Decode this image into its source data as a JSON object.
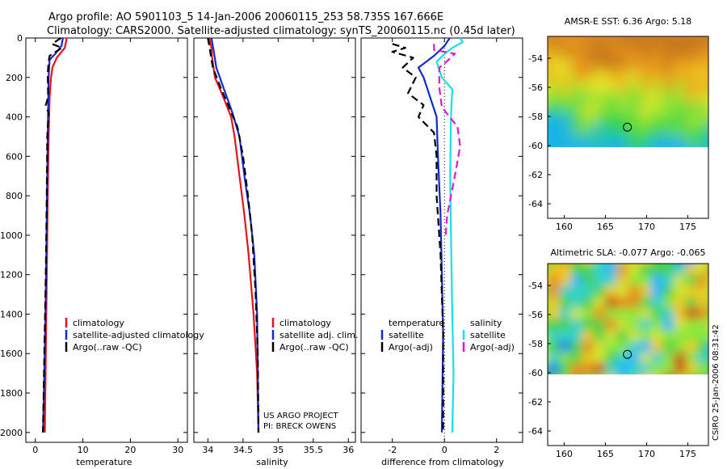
{
  "title": {
    "line1": "Argo profile: AO 5901103_5 14-Jan-2006 20060115_253 58.735S 167.666E",
    "line2": "Climatology: CARS2000. Satellite-adjusted climatology: synTS_20060115.nc (0.45d later)"
  },
  "side_note": "CSIRO 25-Jan-2006 08:31:42",
  "credit": {
    "line1": "US ARGO PROJECT",
    "line2": "PI: BRECK OWENS"
  },
  "colors": {
    "climatology": "#e8121a",
    "satellite": "#1428d2",
    "argo": "#000000",
    "sal_satellite": "#14e0e8",
    "sal_argo": "#e614d2"
  },
  "chart_data": [
    {
      "type": "line",
      "xlabel": "temperature",
      "ylabel": "",
      "xlim": [
        -2,
        32
      ],
      "ylim": [
        2050,
        0
      ],
      "xticks": [
        "0",
        "10",
        "20",
        "30"
      ],
      "yticks": [
        "0",
        "200",
        "400",
        "600",
        "800",
        "1000",
        "1200",
        "1400",
        "1600",
        "1800",
        "2000"
      ],
      "legend_labels": [
        "climatology",
        "satellite-adjusted climatology",
        "Argo(..raw -QC)"
      ],
      "series": [
        {
          "style": "climatology",
          "values": [
            [
              6.6,
              0
            ],
            [
              6.2,
              50
            ],
            [
              4.5,
              100
            ],
            [
              3.6,
              150
            ],
            [
              3.3,
              200
            ],
            [
              3.0,
              300
            ],
            [
              2.8,
              500
            ],
            [
              2.6,
              800
            ],
            [
              2.4,
              1200
            ],
            [
              2.2,
              1600
            ],
            [
              2.0,
              2000
            ]
          ]
        },
        {
          "style": "satellite",
          "values": [
            [
              5.8,
              0
            ],
            [
              5.5,
              40
            ],
            [
              4.2,
              80
            ],
            [
              3.0,
              110
            ],
            [
              2.8,
              200
            ],
            [
              2.6,
              500
            ],
            [
              2.4,
              900
            ],
            [
              2.2,
              1300
            ],
            [
              1.9,
              1700
            ],
            [
              1.6,
              2000
            ]
          ]
        },
        {
          "style": "argo",
          "values": [
            [
              5.4,
              0
            ],
            [
              3.5,
              30
            ],
            [
              5.6,
              50
            ],
            [
              3.0,
              90
            ],
            [
              2.8,
              120
            ],
            [
              2.6,
              180
            ],
            [
              2.7,
              300
            ],
            [
              2.2,
              340
            ],
            [
              2.8,
              380
            ],
            [
              2.5,
              500
            ],
            [
              2.4,
              800
            ],
            [
              2.2,
              1200
            ],
            [
              1.9,
              1600
            ],
            [
              1.6,
              2000
            ]
          ]
        }
      ]
    },
    {
      "type": "line",
      "xlabel": "salinity",
      "ylabel": "",
      "xlim": [
        33.8,
        36.1
      ],
      "ylim": [
        2050,
        0
      ],
      "xticks": [
        "34",
        "34.5",
        "35",
        "35.5",
        "36"
      ],
      "yticks": [],
      "legend_labels": [
        "climatology",
        "satellite adj. clim.",
        "Argo(..raw -QC)"
      ],
      "series": [
        {
          "style": "climatology",
          "values": [
            [
              34.02,
              0
            ],
            [
              34.05,
              50
            ],
            [
              34.06,
              100
            ],
            [
              34.1,
              200
            ],
            [
              34.22,
              300
            ],
            [
              34.33,
              400
            ],
            [
              34.38,
              500
            ],
            [
              34.45,
              700
            ],
            [
              34.52,
              900
            ],
            [
              34.58,
              1100
            ],
            [
              34.65,
              1400
            ],
            [
              34.7,
              1700
            ],
            [
              34.72,
              2000
            ]
          ]
        },
        {
          "style": "satellite",
          "values": [
            [
              34.05,
              0
            ],
            [
              34.08,
              60
            ],
            [
              34.12,
              150
            ],
            [
              34.22,
              250
            ],
            [
              34.35,
              380
            ],
            [
              34.45,
              500
            ],
            [
              34.52,
              700
            ],
            [
              34.6,
              900
            ],
            [
              34.66,
              1100
            ],
            [
              34.7,
              1400
            ],
            [
              34.72,
              2000
            ]
          ]
        },
        {
          "style": "argo",
          "values": [
            [
              34.0,
              0
            ],
            [
              34.02,
              40
            ],
            [
              34.07,
              150
            ],
            [
              34.18,
              250
            ],
            [
              34.3,
              350
            ],
            [
              34.42,
              450
            ],
            [
              34.5,
              600
            ],
            [
              34.57,
              800
            ],
            [
              34.63,
              1000
            ],
            [
              34.68,
              1300
            ],
            [
              34.71,
              1600
            ],
            [
              34.72,
              2000
            ]
          ]
        }
      ]
    },
    {
      "type": "line",
      "xlabel": "difference from climatology",
      "ylabel": "",
      "xlim": [
        -3.2,
        3.0
      ],
      "ylim": [
        2050,
        0
      ],
      "xticks": [
        "-2",
        "0",
        "2"
      ],
      "yticks": [],
      "legend_labels": [
        "temperature",
        "satellite",
        "Argo(-adj)",
        "salinity",
        "satellite",
        "Argo(-adj)"
      ],
      "series": [
        {
          "style": "satellite",
          "values": [
            [
              0.2,
              0
            ],
            [
              0.0,
              40
            ],
            [
              -0.4,
              90
            ],
            [
              -1.0,
              150
            ],
            [
              -0.8,
              200
            ],
            [
              -0.6,
              280
            ],
            [
              -0.3,
              400
            ],
            [
              -0.25,
              600
            ],
            [
              -0.15,
              900
            ],
            [
              -0.1,
              1200
            ],
            [
              -0.05,
              1500
            ],
            [
              -0.1,
              2000
            ]
          ]
        },
        {
          "style": "argo",
          "values": [
            [
              -2.0,
              30
            ],
            [
              -1.5,
              50
            ],
            [
              -2.0,
              70
            ],
            [
              -1.2,
              100
            ],
            [
              -1.6,
              150
            ],
            [
              -1.1,
              200
            ],
            [
              -1.4,
              280
            ],
            [
              -0.8,
              340
            ],
            [
              -1.0,
              400
            ],
            [
              -0.4,
              480
            ],
            [
              -0.3,
              600
            ],
            [
              -0.3,
              800
            ],
            [
              -0.15,
              1100
            ],
            [
              -0.05,
              1500
            ],
            [
              -0.05,
              2000
            ]
          ]
        },
        {
          "style": "sal_satellite",
          "values": [
            [
              0.6,
              0
            ],
            [
              0.7,
              20
            ],
            [
              0.3,
              50
            ],
            [
              0.0,
              80
            ],
            [
              -0.3,
              120
            ],
            [
              -0.1,
              200
            ],
            [
              0.3,
              260
            ],
            [
              0.25,
              400
            ],
            [
              0.22,
              700
            ],
            [
              0.25,
              1000
            ],
            [
              0.3,
              1400
            ],
            [
              0.35,
              1700
            ],
            [
              0.3,
              2000
            ]
          ]
        },
        {
          "style": "sal_argo",
          "values": [
            [
              -0.4,
              30
            ],
            [
              -0.4,
              60
            ],
            [
              0.4,
              80
            ],
            [
              0.0,
              130
            ],
            [
              -0.2,
              150
            ],
            [
              -0.2,
              250
            ],
            [
              -0.1,
              350
            ],
            [
              0.5,
              450
            ],
            [
              0.6,
              550
            ],
            [
              0.4,
              700
            ],
            [
              0.25,
              800
            ],
            [
              0.1,
              900
            ],
            [
              0.05,
              1000
            ]
          ]
        }
      ]
    },
    {
      "type": "heatmap",
      "title": "AMSR-E SST: 6.36 Argo: 5.18",
      "xlim": [
        158,
        177.5
      ],
      "ylim": [
        -65,
        -52.5
      ],
      "xticks": [
        "160",
        "165",
        "170",
        "175"
      ],
      "yticks": [
        "-54",
        "-56",
        "-58",
        "-60",
        "-62",
        "-64"
      ],
      "data_extent_lat": [
        -60,
        -52.5
      ],
      "argo_position": [
        167.666,
        -58.735
      ]
    },
    {
      "type": "heatmap",
      "title": "Altimetric SLA: -0.077 Argo: -0.065",
      "xlim": [
        158,
        177.5
      ],
      "ylim": [
        -65,
        -52.5
      ],
      "xticks": [
        "160",
        "165",
        "170",
        "175"
      ],
      "yticks": [
        "-54",
        "-56",
        "-58",
        "-60",
        "-62",
        "-64"
      ],
      "data_extent_lat": [
        -60,
        -52.5
      ],
      "argo_position": [
        167.666,
        -58.735
      ]
    }
  ]
}
